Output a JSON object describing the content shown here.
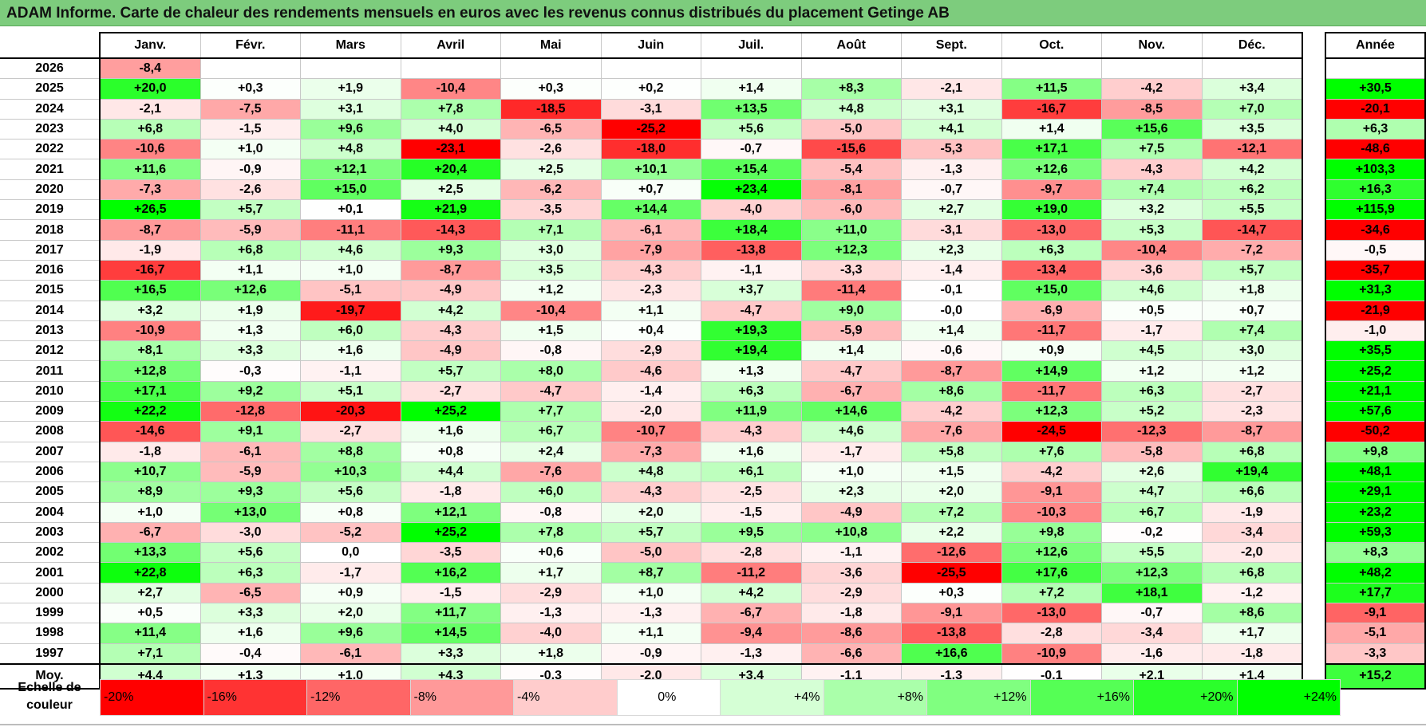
{
  "title": "ADAM Informe. Carte de chaleur des rendements mensuels en euros avec les revenus connus distribués du placement Getinge AB",
  "headers": {
    "months": [
      "Janv.",
      "Févr.",
      "Mars",
      "Avril",
      "Mai",
      "Juin",
      "Juil.",
      "Août",
      "Sept.",
      "Oct.",
      "Nov.",
      "Déc."
    ],
    "year": "Année"
  },
  "average_label": "Moy.",
  "scale": {
    "label_line1": "Echelle de",
    "label_line2": "couleur",
    "steps": [
      -20,
      -16,
      -12,
      -8,
      -4,
      0,
      4,
      8,
      12,
      16,
      20,
      24
    ],
    "labels": [
      "-20%",
      "-16%",
      "-12%",
      "-8%",
      "-4%",
      "0%",
      "+4%",
      "+8%",
      "+12%",
      "+16%",
      "+20%",
      "+24%"
    ]
  },
  "colors": {
    "title_bg": "#7dcc7d",
    "max_red": "#ff0000",
    "max_green": "#00ff00"
  },
  "chart_data": {
    "type": "heatmap",
    "title": "ADAM Informe. Carte de chaleur des rendements mensuels en euros avec les revenus connus distribués du placement Getinge AB",
    "x_categories": [
      "Janv.",
      "Févr.",
      "Mars",
      "Avril",
      "Mai",
      "Juin",
      "Juil.",
      "Août",
      "Sept.",
      "Oct.",
      "Nov.",
      "Déc."
    ],
    "rows": [
      {
        "year": "2026",
        "months": [
          "-8,4",
          "",
          "",
          "",
          "",
          "",
          "",
          "",
          "",
          "",
          "",
          ""
        ],
        "annual": ""
      },
      {
        "year": "2025",
        "months": [
          "+20,0",
          "+0,3",
          "+1,9",
          "-10,4",
          "+0,3",
          "+0,2",
          "+1,4",
          "+8,3",
          "-2,1",
          "+11,5",
          "-4,2",
          "+3,4"
        ],
        "annual": "+30,5"
      },
      {
        "year": "2024",
        "months": [
          "-2,1",
          "-7,5",
          "+3,1",
          "+7,8",
          "-18,5",
          "-3,1",
          "+13,5",
          "+4,8",
          "+3,1",
          "-16,7",
          "-8,5",
          "+7,0"
        ],
        "annual": "-20,1"
      },
      {
        "year": "2023",
        "months": [
          "+6,8",
          "-1,5",
          "+9,6",
          "+4,0",
          "-6,5",
          "-25,2",
          "+5,6",
          "-5,0",
          "+4,1",
          "+1,4",
          "+15,6",
          "+3,5"
        ],
        "annual": "+6,3"
      },
      {
        "year": "2022",
        "months": [
          "-10,6",
          "+1,0",
          "+4,8",
          "-23,1",
          "-2,6",
          "-18,0",
          "-0,7",
          "-15,6",
          "-5,3",
          "+17,1",
          "+7,5",
          "-12,1"
        ],
        "annual": "-48,6"
      },
      {
        "year": "2021",
        "months": [
          "+11,6",
          "-0,9",
          "+12,1",
          "+20,4",
          "+2,5",
          "+10,1",
          "+15,4",
          "-5,4",
          "-1,3",
          "+12,6",
          "-4,3",
          "+4,2"
        ],
        "annual": "+103,3"
      },
      {
        "year": "2020",
        "months": [
          "-7,3",
          "-2,6",
          "+15,0",
          "+2,5",
          "-6,2",
          "+0,7",
          "+23,4",
          "-8,1",
          "-0,7",
          "-9,7",
          "+7,4",
          "+6,2"
        ],
        "annual": "+16,3"
      },
      {
        "year": "2019",
        "months": [
          "+26,5",
          "+5,7",
          "+0,1",
          "+21,9",
          "-3,5",
          "+14,4",
          "-4,0",
          "-6,0",
          "+2,7",
          "+19,0",
          "+3,2",
          "+5,5"
        ],
        "annual": "+115,9"
      },
      {
        "year": "2018",
        "months": [
          "-8,7",
          "-5,9",
          "-11,1",
          "-14,3",
          "+7,1",
          "-6,1",
          "+18,4",
          "+11,0",
          "-3,1",
          "-13,0",
          "+5,3",
          "-14,7"
        ],
        "annual": "-34,6"
      },
      {
        "year": "2017",
        "months": [
          "-1,9",
          "+6,8",
          "+4,6",
          "+9,3",
          "+3,0",
          "-7,9",
          "-13,8",
          "+12,3",
          "+2,3",
          "+6,3",
          "-10,4",
          "-7,2"
        ],
        "annual": "-0,5"
      },
      {
        "year": "2016",
        "months": [
          "-16,7",
          "+1,1",
          "+1,0",
          "-8,7",
          "+3,5",
          "-4,3",
          "-1,1",
          "-3,3",
          "-1,4",
          "-13,4",
          "-3,6",
          "+5,7"
        ],
        "annual": "-35,7"
      },
      {
        "year": "2015",
        "months": [
          "+16,5",
          "+12,6",
          "-5,1",
          "-4,9",
          "+1,2",
          "-2,3",
          "+3,7",
          "-11,4",
          "-0,1",
          "+15,0",
          "+4,6",
          "+1,8"
        ],
        "annual": "+31,3"
      },
      {
        "year": "2014",
        "months": [
          "+3,2",
          "+1,9",
          "-19,7",
          "+4,2",
          "-10,4",
          "+1,1",
          "-4,7",
          "+9,0",
          "-0,0",
          "-6,9",
          "+0,5",
          "+0,7"
        ],
        "annual": "-21,9"
      },
      {
        "year": "2013",
        "months": [
          "-10,9",
          "+1,3",
          "+6,0",
          "-4,3",
          "+1,5",
          "+0,4",
          "+19,3",
          "-5,9",
          "+1,4",
          "-11,7",
          "-1,7",
          "+7,4"
        ],
        "annual": "-1,0"
      },
      {
        "year": "2012",
        "months": [
          "+8,1",
          "+3,3",
          "+1,6",
          "-4,9",
          "-0,8",
          "-2,9",
          "+19,4",
          "+1,4",
          "-0,6",
          "+0,9",
          "+4,5",
          "+3,0"
        ],
        "annual": "+35,5"
      },
      {
        "year": "2011",
        "months": [
          "+12,8",
          "-0,3",
          "-1,1",
          "+5,7",
          "+8,0",
          "-4,6",
          "+1,3",
          "-4,7",
          "-8,7",
          "+14,9",
          "+1,2",
          "+1,2"
        ],
        "annual": "+25,2"
      },
      {
        "year": "2010",
        "months": [
          "+17,1",
          "+9,2",
          "+5,1",
          "-2,7",
          "-4,7",
          "-1,4",
          "+6,3",
          "-6,7",
          "+8,6",
          "-11,7",
          "+6,3",
          "-2,7"
        ],
        "annual": "+21,1"
      },
      {
        "year": "2009",
        "months": [
          "+22,2",
          "-12,8",
          "-20,3",
          "+25,2",
          "+7,7",
          "-2,0",
          "+11,9",
          "+14,6",
          "-4,2",
          "+12,3",
          "+5,2",
          "-2,3"
        ],
        "annual": "+57,6"
      },
      {
        "year": "2008",
        "months": [
          "-14,6",
          "+9,1",
          "-2,7",
          "+1,6",
          "+6,7",
          "-10,7",
          "-4,3",
          "+4,6",
          "-7,6",
          "-24,5",
          "-12,3",
          "-8,7"
        ],
        "annual": "-50,2"
      },
      {
        "year": "2007",
        "months": [
          "-1,8",
          "-6,1",
          "+8,8",
          "+0,8",
          "+2,4",
          "-7,3",
          "+1,6",
          "-1,7",
          "+5,8",
          "+7,6",
          "-5,8",
          "+6,8"
        ],
        "annual": "+9,8"
      },
      {
        "year": "2006",
        "months": [
          "+10,7",
          "-5,9",
          "+10,3",
          "+4,4",
          "-7,6",
          "+4,8",
          "+6,1",
          "+1,0",
          "+1,5",
          "-4,2",
          "+2,6",
          "+19,4"
        ],
        "annual": "+48,1"
      },
      {
        "year": "2005",
        "months": [
          "+8,9",
          "+9,3",
          "+5,6",
          "-1,8",
          "+6,0",
          "-4,3",
          "-2,5",
          "+2,3",
          "+2,0",
          "-9,1",
          "+4,7",
          "+6,6"
        ],
        "annual": "+29,1"
      },
      {
        "year": "2004",
        "months": [
          "+1,0",
          "+13,0",
          "+0,8",
          "+12,1",
          "-0,8",
          "+2,0",
          "-1,5",
          "-4,9",
          "+7,2",
          "-10,3",
          "+6,7",
          "-1,9"
        ],
        "annual": "+23,2"
      },
      {
        "year": "2003",
        "months": [
          "-6,7",
          "-3,0",
          "-5,2",
          "+25,2",
          "+7,8",
          "+5,7",
          "+9,5",
          "+10,8",
          "+2,2",
          "+9,8",
          "-0,2",
          "-3,4"
        ],
        "annual": "+59,3"
      },
      {
        "year": "2002",
        "months": [
          "+13,3",
          "+5,6",
          "0,0",
          "-3,5",
          "+0,6",
          "-5,0",
          "-2,8",
          "-1,1",
          "-12,6",
          "+12,6",
          "+5,5",
          "-2,0"
        ],
        "annual": "+8,3"
      },
      {
        "year": "2001",
        "months": [
          "+22,8",
          "+6,3",
          "-1,7",
          "+16,2",
          "+1,7",
          "+8,7",
          "-11,2",
          "-3,6",
          "-25,5",
          "+17,6",
          "+12,3",
          "+6,8"
        ],
        "annual": "+48,2"
      },
      {
        "year": "2000",
        "months": [
          "+2,7",
          "-6,5",
          "+0,9",
          "-1,5",
          "-2,9",
          "+1,0",
          "+4,2",
          "-2,9",
          "+0,3",
          "+7,2",
          "+18,1",
          "-1,2"
        ],
        "annual": "+17,7"
      },
      {
        "year": "1999",
        "months": [
          "+0,5",
          "+3,3",
          "+2,0",
          "+11,7",
          "-1,3",
          "-1,3",
          "-6,7",
          "-1,8",
          "-9,1",
          "-13,0",
          "-0,7",
          "+8,6"
        ],
        "annual": "-9,1"
      },
      {
        "year": "1998",
        "months": [
          "+11,4",
          "+1,6",
          "+9,6",
          "+14,5",
          "-4,0",
          "+1,1",
          "-9,4",
          "-8,6",
          "-13,8",
          "-2,8",
          "-3,4",
          "+1,7"
        ],
        "annual": "-5,1"
      },
      {
        "year": "1997",
        "months": [
          "+7,1",
          "-0,4",
          "-6,1",
          "+3,3",
          "+1,8",
          "-0,9",
          "-1,3",
          "-6,6",
          "+16,6",
          "-10,9",
          "-1,6",
          "-1,8"
        ],
        "annual": "-3,3"
      }
    ],
    "average": {
      "months": [
        "+4,4",
        "+1,3",
        "+1,0",
        "+4,3",
        "-0,3",
        "-2,0",
        "+3,4",
        "-1,1",
        "-1,3",
        "-0,1",
        "+2,1",
        "+1,4"
      ],
      "annual": "+15,2"
    }
  }
}
